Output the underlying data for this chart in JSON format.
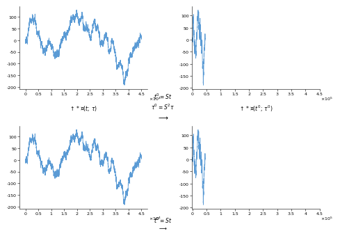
{
  "seed": 42,
  "n_points": 5000,
  "line_color": "#5b9bd5",
  "line_width": 0.6,
  "background": "#ffffff",
  "scale_factor": 100,
  "top_left_xlabel": "$\\times 10^4$",
  "top_right_xlabel": "$\\times 10^5$",
  "bottom_left_xlabel": "$\\times 10^4$",
  "bottom_right_xlabel": "$\\times 10^5$",
  "bottom_left_title": "$\\uparrow *\\mathcal{T}(t;\\, \\tau)$",
  "bottom_right_title": "$\\uparrow *\\mathcal{T}(t';\\, \\tau')$",
  "center_line1": "$t' = St$",
  "center_line2": "$\\tau' = S^2\\tau$",
  "center_arrow": "$\\longrightarrow$",
  "bottom_center_line1": "$t' = St$",
  "bottom_center_arrow": "$\\longrightarrow$"
}
